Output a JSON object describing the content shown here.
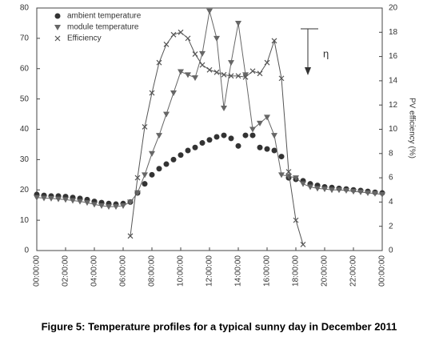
{
  "chart_data": {
    "type": "line",
    "caption": "Figure 5: Temperature profiles for a typical sunny day in December 2011",
    "y2label": "PV efficiency (%)",
    "annotation": "η",
    "xlim": [
      0,
      24
    ],
    "xticks": [
      {
        "value": 0,
        "label": "00:00:00"
      },
      {
        "value": 2,
        "label": "02:00:00"
      },
      {
        "value": 4,
        "label": "04:00:00"
      },
      {
        "value": 6,
        "label": "06:00:00"
      },
      {
        "value": 8,
        "label": "08:00:00"
      },
      {
        "value": 10,
        "label": "10:00:00"
      },
      {
        "value": 12,
        "label": "12:00:00"
      },
      {
        "value": 14,
        "label": "14:00:00"
      },
      {
        "value": 16,
        "label": "16:00:00"
      },
      {
        "value": 18,
        "label": "18:00:00"
      },
      {
        "value": 20,
        "label": "20:00:00"
      },
      {
        "value": 22,
        "label": "22:00:00"
      },
      {
        "value": 24,
        "label": "00:00:00"
      }
    ],
    "ylim": [
      0,
      80
    ],
    "yticks": [
      0,
      10,
      20,
      30,
      40,
      50,
      60,
      70,
      80
    ],
    "y2lim": [
      0,
      20
    ],
    "y2ticks": [
      0,
      2,
      4,
      6,
      8,
      10,
      12,
      14,
      16,
      18,
      20
    ],
    "series": [
      {
        "name": "ambient temperature",
        "color": "#333333",
        "marker": "circle",
        "line": false,
        "x": [
          0,
          0.5,
          1,
          1.5,
          2,
          2.5,
          3,
          3.5,
          4,
          4.5,
          5,
          5.5,
          6,
          6.5,
          7,
          7.5,
          8,
          8.5,
          9,
          9.5,
          10,
          10.5,
          11,
          11.5,
          12,
          12.5,
          13,
          13.5,
          14,
          14.5,
          15,
          15.5,
          16,
          16.5,
          17,
          17.5,
          18,
          18.5,
          19,
          19.5,
          20,
          20.5,
          21,
          21.5,
          22,
          22.5,
          23,
          23.5,
          24
        ],
        "values": [
          18.5,
          18.2,
          18,
          18,
          17.8,
          17.5,
          17.2,
          16.8,
          16.2,
          15.8,
          15.5,
          15.3,
          15.5,
          16,
          19,
          22,
          25,
          27,
          28.5,
          30,
          31.5,
          33,
          34,
          35.5,
          36.5,
          37.5,
          38,
          37,
          34.5,
          38,
          38,
          34,
          33.5,
          33,
          31,
          24,
          23.5,
          23,
          22,
          21.5,
          21,
          20.8,
          20.5,
          20.3,
          20,
          19.8,
          19.5,
          19.2,
          19
        ]
      },
      {
        "name": "module temperature",
        "color": "#666666",
        "marker": "triangle",
        "line": true,
        "x": [
          0,
          0.5,
          1,
          1.5,
          2,
          2.5,
          3,
          3.5,
          4,
          4.5,
          5,
          5.5,
          6,
          6.5,
          7,
          7.5,
          8,
          8.5,
          9,
          9.5,
          10,
          10.5,
          11,
          11.5,
          12,
          12.5,
          13,
          13.5,
          14,
          14.5,
          15,
          15.5,
          16,
          16.5,
          17,
          17.5,
          18,
          18.5,
          19,
          19.5,
          20,
          20.5,
          21,
          21.5,
          22,
          22.5,
          23,
          23.5,
          24
        ],
        "values": [
          17.5,
          17.3,
          17.2,
          17,
          16.8,
          16.5,
          16.2,
          15.8,
          15.2,
          14.8,
          14.5,
          14.5,
          14.8,
          16,
          19,
          25,
          32,
          38,
          45,
          52,
          59,
          58,
          57,
          65,
          79,
          70,
          47,
          62,
          75,
          58,
          40,
          42,
          44,
          38,
          25,
          24.5,
          24,
          22,
          21,
          20.5,
          20.3,
          20,
          20,
          19.8,
          19.5,
          19.3,
          19,
          18.8,
          18.5
        ]
      },
      {
        "name": "Efficiency",
        "color": "#555555",
        "marker": "x",
        "line": true,
        "axis": "y2",
        "x": [
          6.5,
          7,
          7.5,
          8,
          8.5,
          9,
          9.5,
          10,
          10.5,
          11,
          11.5,
          12,
          12.5,
          13,
          13.5,
          14,
          14.5,
          15,
          15.5,
          16,
          16.5,
          17,
          17.5,
          18,
          18.5
        ],
        "values": [
          1.2,
          6,
          10.2,
          13,
          15.5,
          17,
          17.8,
          18,
          17.5,
          16.2,
          15.3,
          14.9,
          14.7,
          14.5,
          14.4,
          14.4,
          14.3,
          14.8,
          14.6,
          15.5,
          17.3,
          14.2,
          6.5,
          2.5,
          0.5
        ]
      }
    ]
  }
}
